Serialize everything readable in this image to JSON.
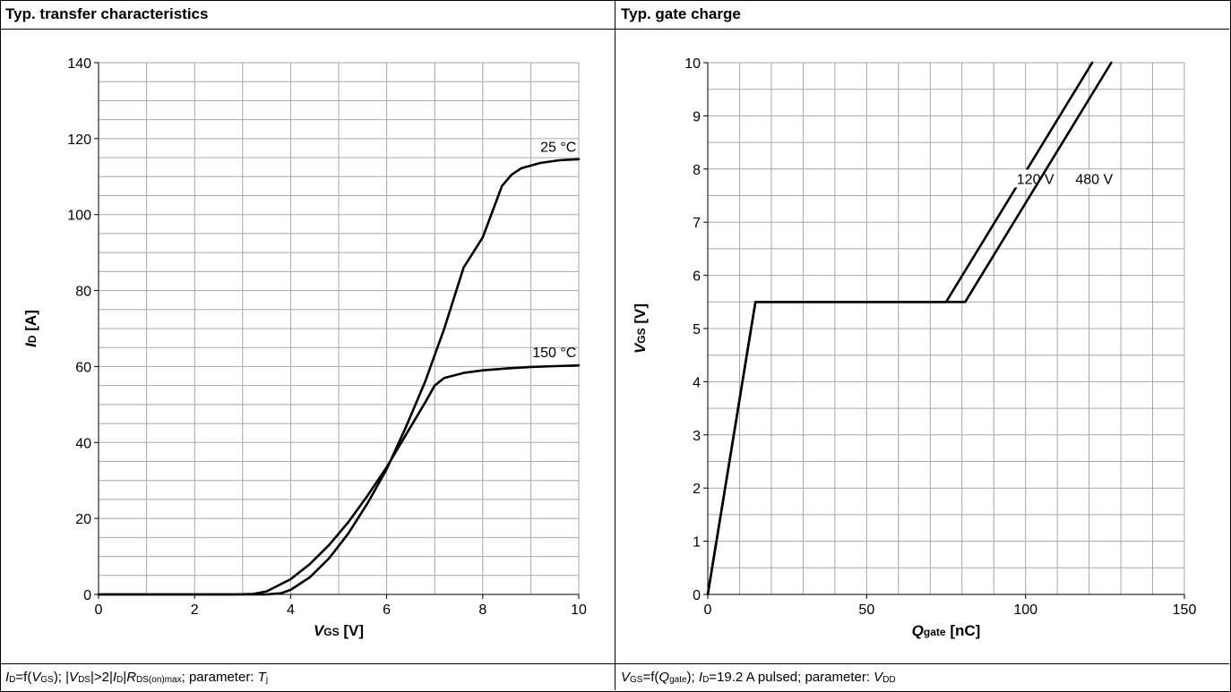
{
  "panels": {
    "left_title": "Typ. transfer characteristics",
    "right_title": "Typ. gate charge",
    "left_caption": {
      "p1": "I",
      "p2": "D",
      "p3": "=f(",
      "p4": "V",
      "p5": "GS",
      "p6": "); |",
      "p7": "V",
      "p8": "DS",
      "p9": "|>2|",
      "p10": "I",
      "p11": "D",
      "p12": "|",
      "p13": "R",
      "p14": "DS(on)max",
      "p15": "; parameter: ",
      "p16": "T",
      "p17": "j"
    },
    "right_caption": {
      "p1": "V",
      "p2": "GS",
      "p3": "=f(",
      "p4": "Q",
      "p5": "gate",
      "p6": "); ",
      "p7": "I",
      "p8": "D",
      "p9": "=19.2 A pulsed; parameter: ",
      "p10": "V",
      "p11": "DD"
    }
  },
  "chart_data": [
    {
      "type": "line",
      "title": "Typ. transfer characteristics",
      "xlabel_main": "V",
      "xlabel_sub": "GS",
      "xlabel_unit": "[V]",
      "ylabel_main": "I",
      "ylabel_sub": "D",
      "ylabel_unit": "[A]",
      "xlim": [
        0,
        10
      ],
      "ylim": [
        0,
        140
      ],
      "x_ticks": [
        "0",
        "2",
        "4",
        "6",
        "8",
        "10"
      ],
      "y_ticks": [
        "0",
        "20",
        "40",
        "60",
        "80",
        "100",
        "120",
        "140"
      ],
      "grid": true,
      "series": [
        {
          "name": "25 °C",
          "x": [
            0,
            3.0,
            3.5,
            3.8,
            4.0,
            4.4,
            4.8,
            5.2,
            5.6,
            6.0,
            6.4,
            6.8,
            7.2,
            7.6,
            8.0,
            8.4,
            8.6,
            8.8,
            9.2,
            9.6,
            10
          ],
          "y": [
            0,
            0,
            0,
            0.3,
            1.2,
            4.5,
            9.5,
            16,
            24,
            33,
            44,
            56,
            70,
            86,
            94,
            107.5,
            110.5,
            112.2,
            113.6,
            114.3,
            114.6
          ]
        },
        {
          "name": "150 °C",
          "x": [
            0,
            2.8,
            3.2,
            3.5,
            4.0,
            4.4,
            4.8,
            5.2,
            5.6,
            6.0,
            6.4,
            6.8,
            7.0,
            7.2,
            7.6,
            8.0,
            8.5,
            9.0,
            9.5,
            10
          ],
          "y": [
            0,
            0,
            0.1,
            0.8,
            4.0,
            8.0,
            13.0,
            19.0,
            26.0,
            33.5,
            42.0,
            50.5,
            55.0,
            57.0,
            58.3,
            59.0,
            59.5,
            59.9,
            60.1,
            60.3
          ]
        }
      ]
    },
    {
      "type": "line",
      "title": "Typ. gate charge",
      "xlabel_main": "Q",
      "xlabel_sub": "gate",
      "xlabel_unit": "[nC]",
      "ylabel_main": "V",
      "ylabel_sub": "GS",
      "ylabel_unit": "[V]",
      "xlim": [
        0,
        150
      ],
      "ylim": [
        0,
        10
      ],
      "x_ticks": [
        "0",
        "50",
        "100",
        "150"
      ],
      "y_ticks": [
        "0",
        "1",
        "2",
        "3",
        "4",
        "5",
        "6",
        "7",
        "8",
        "9",
        "10"
      ],
      "grid": true,
      "series": [
        {
          "name": "120 V",
          "x": [
            0,
            15,
            75,
            121
          ],
          "y": [
            0,
            5.5,
            5.5,
            10
          ]
        },
        {
          "name": "480 V",
          "x": [
            0,
            15,
            81,
            127
          ],
          "y": [
            0,
            5.5,
            5.5,
            10
          ]
        }
      ]
    }
  ]
}
